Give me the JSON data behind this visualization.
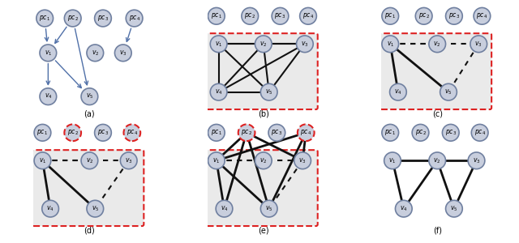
{
  "fig_width": 6.4,
  "fig_height": 3.0,
  "background_color": "#ffffff",
  "node_color": "#c8cedd",
  "node_edge_color": "#7080a0",
  "box_fill": "#eaeaea",
  "box_red": "#dd2222",
  "arrow_color": "#5070a8",
  "edge_dark": "#111111",
  "subplots": [
    "(a)",
    "(b)",
    "(c)",
    "(d)",
    "(e)",
    "(f)"
  ]
}
